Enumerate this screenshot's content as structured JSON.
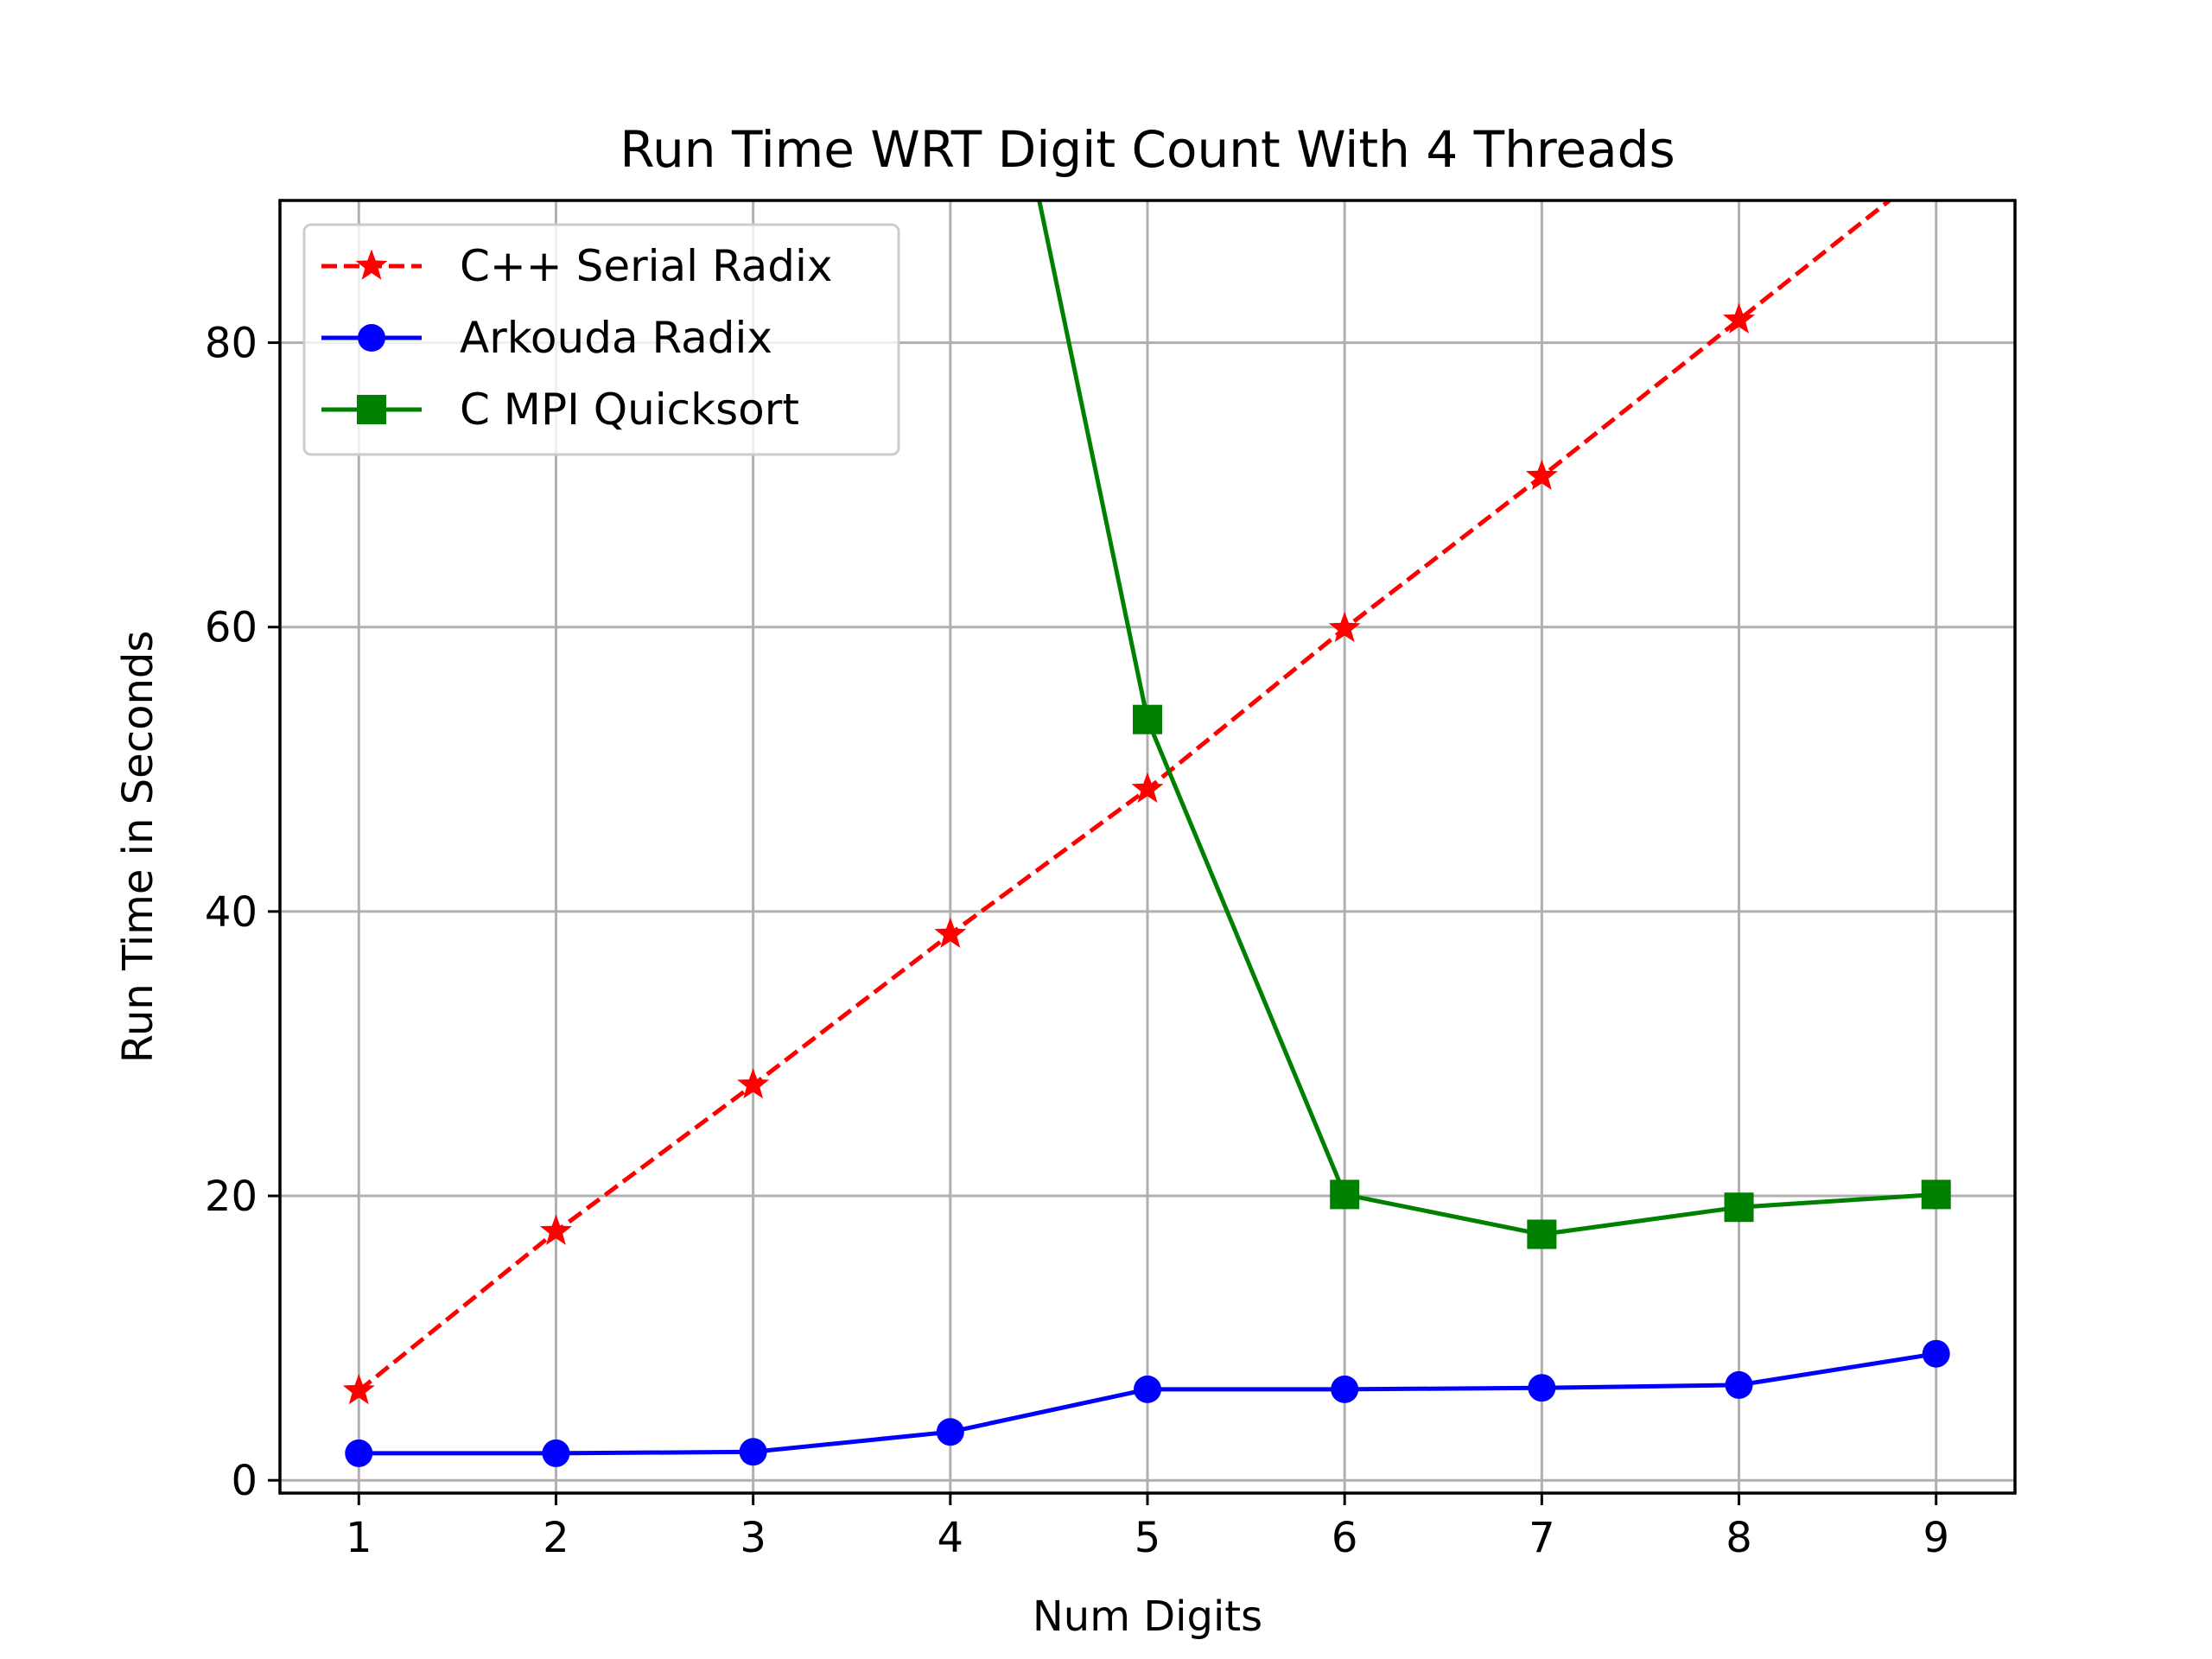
{
  "chart_data": {
    "type": "line",
    "title": "Run Time WRT Digit Count With 4 Threads",
    "xlabel": "Num Digits",
    "ylabel": "Run Time in Seconds",
    "x": [
      1,
      2,
      3,
      4,
      5,
      6,
      7,
      8,
      9
    ],
    "xlim": [
      0.6,
      9.4
    ],
    "ylim": [
      -0.9,
      90
    ],
    "xticks": [
      1,
      2,
      3,
      4,
      5,
      6,
      7,
      8,
      9
    ],
    "yticks": [
      0,
      20,
      40,
      60,
      80
    ],
    "grid": true,
    "legend_position": "upper-left",
    "series": [
      {
        "name": "C++ Serial Radix",
        "color": "#ff0000",
        "linestyle": "dashed",
        "marker": "star",
        "values": [
          6.3,
          17.5,
          27.8,
          38.4,
          48.6,
          59.9,
          70.6,
          81.6,
          92.6
        ]
      },
      {
        "name": "Arkouda Radix",
        "color": "#0000ff",
        "linestyle": "solid",
        "marker": "circle",
        "values": [
          1.9,
          1.9,
          2.0,
          3.4,
          6.4,
          6.4,
          6.5,
          6.7,
          8.9
        ]
      },
      {
        "name": "C MPI Quicksort",
        "color": "#008000",
        "linestyle": "solid",
        "marker": "square",
        "values": [
          null,
          null,
          null,
          120.0,
          53.5,
          20.1,
          17.3,
          19.2,
          20.1
        ]
      }
    ]
  }
}
